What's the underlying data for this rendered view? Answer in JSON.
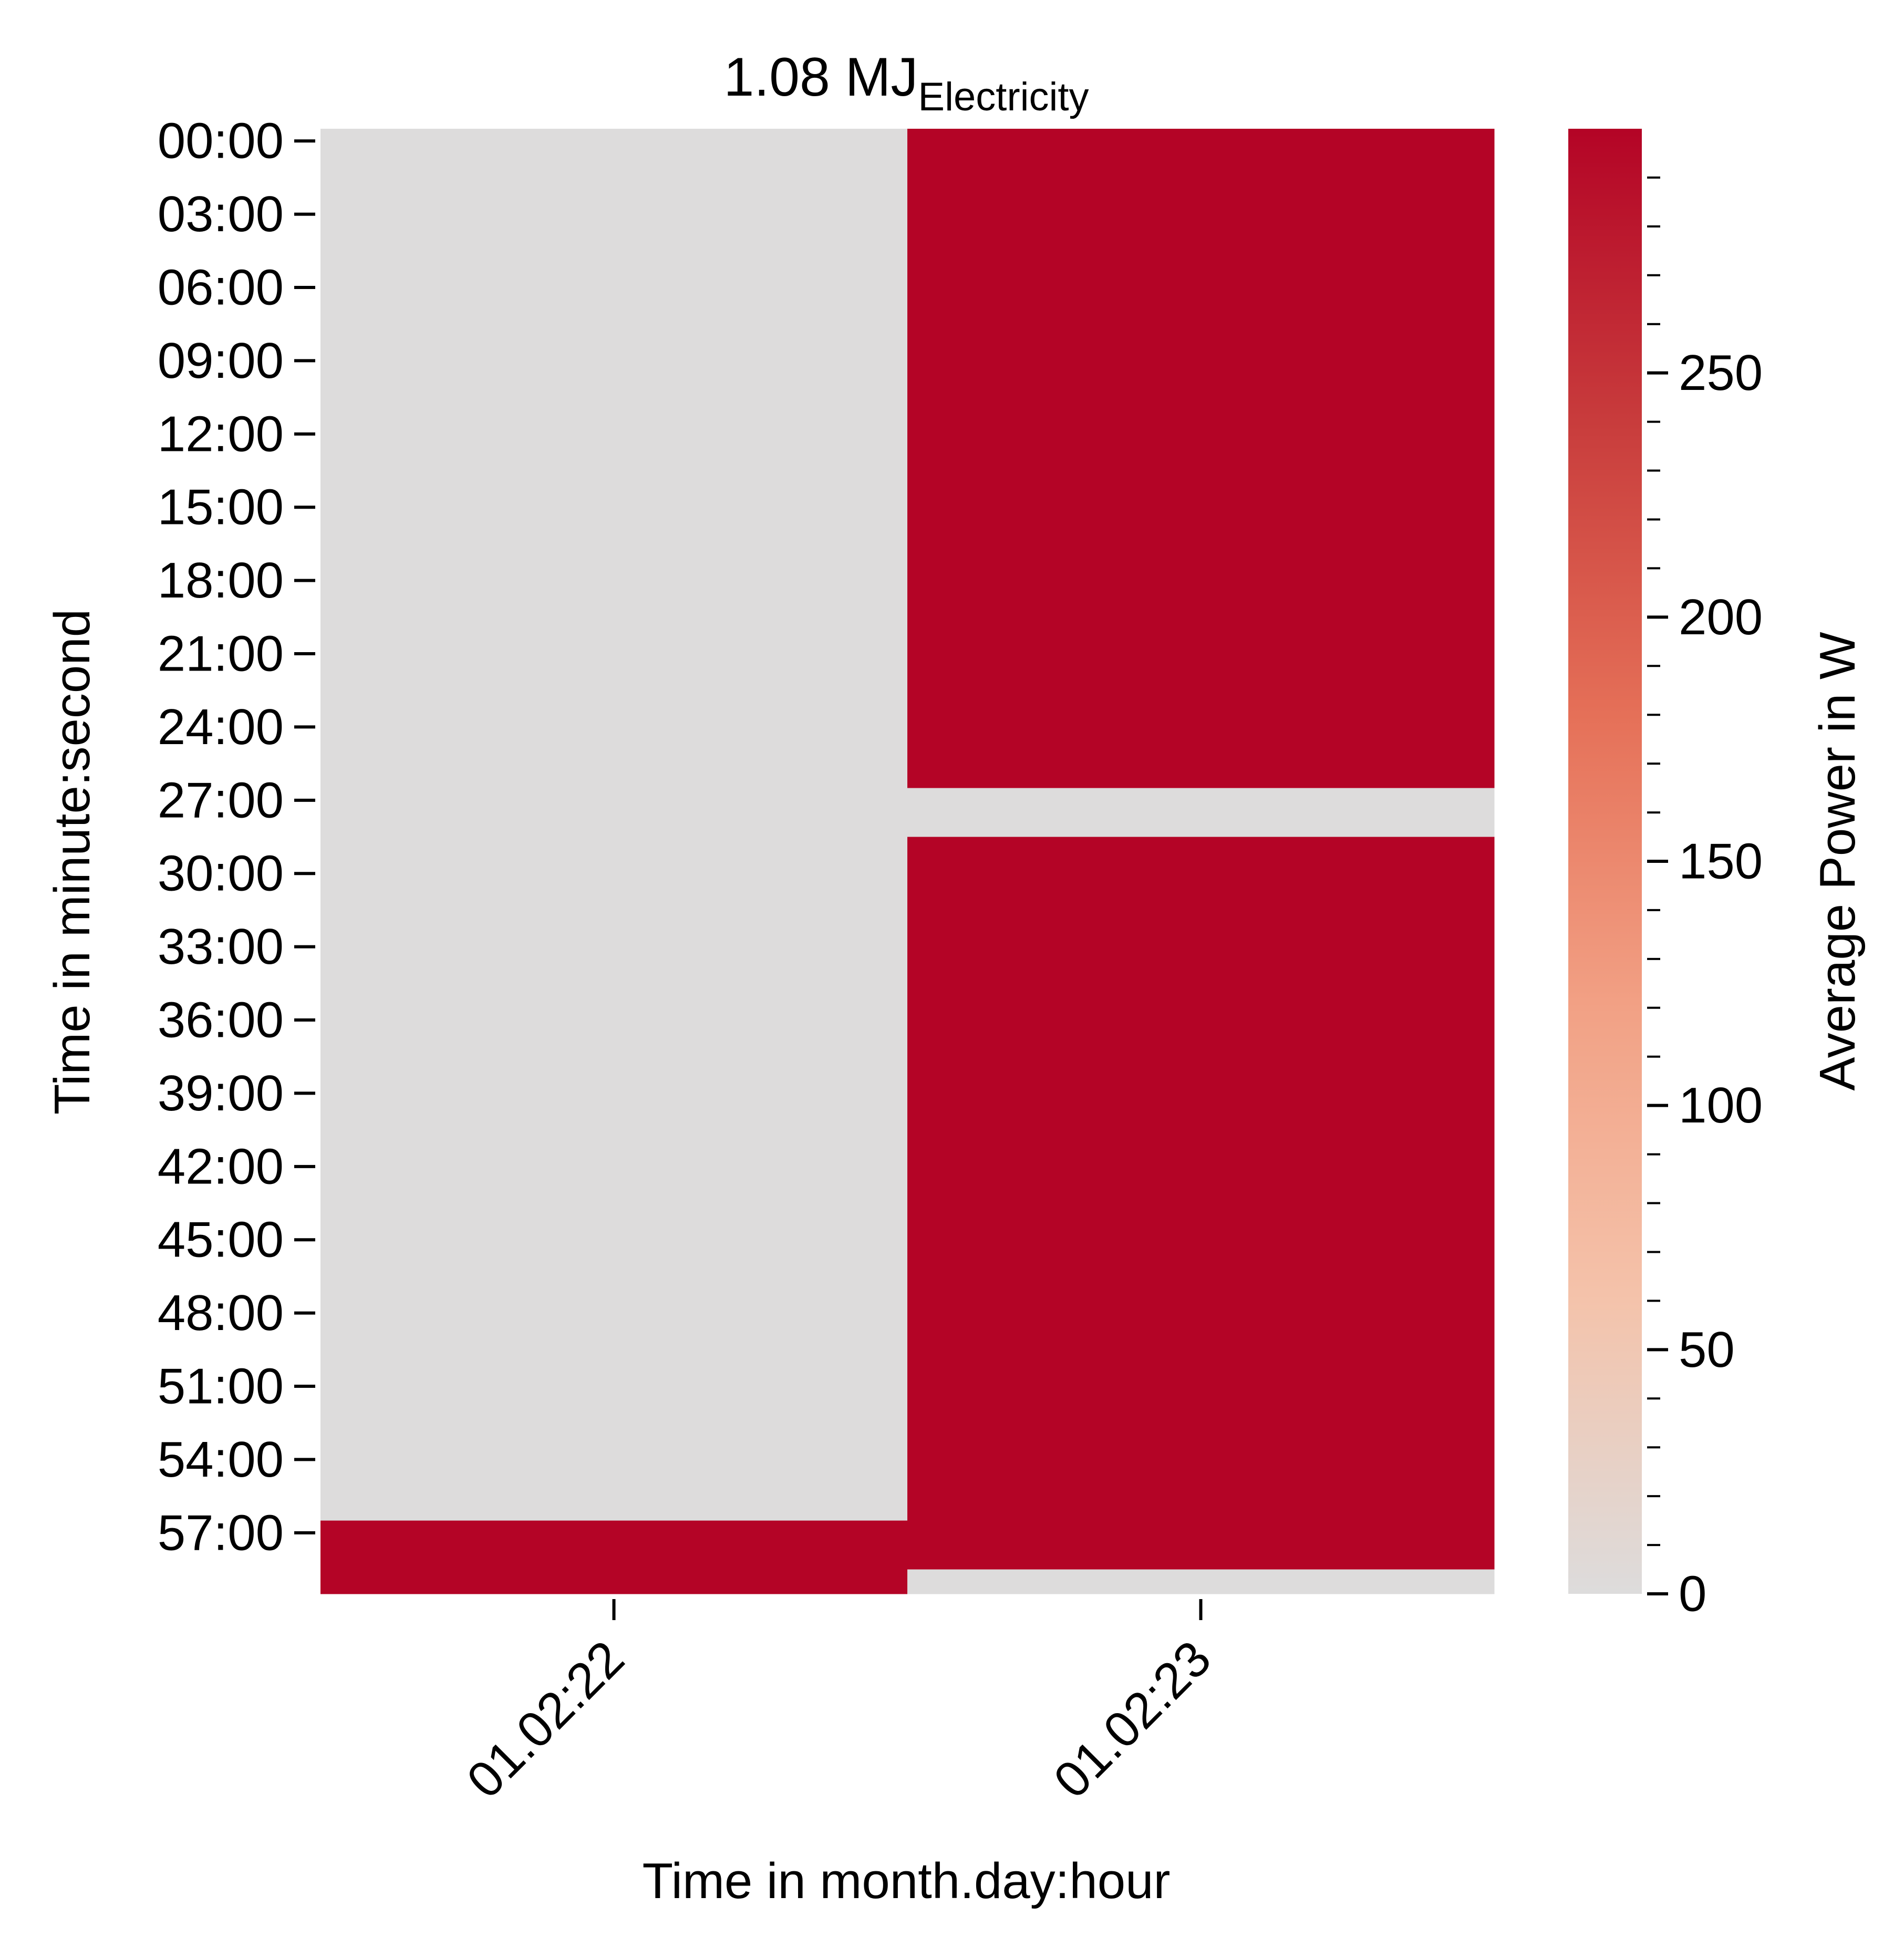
{
  "chart_data": {
    "type": "heatmap",
    "title": "1.08 MJ",
    "title_subscript": "Electricity",
    "xlabel": "Time in month.day:hour",
    "ylabel": "Time in minute:second",
    "colorbar_label": "Average Power in W",
    "x_categories": [
      "01.02:22",
      "01.02:23"
    ],
    "y_tick_labels": [
      "00:00",
      "03:00",
      "06:00",
      "09:00",
      "12:00",
      "15:00",
      "18:00",
      "21:00",
      "24:00",
      "27:00",
      "30:00",
      "33:00",
      "36:00",
      "39:00",
      "42:00",
      "45:00",
      "48:00",
      "51:00",
      "54:00",
      "57:00"
    ],
    "y_range_minutes": [
      0,
      60
    ],
    "cells": [
      {
        "x": "01.02:22",
        "start_min": 0,
        "end_min": 57,
        "value": 0
      },
      {
        "x": "01.02:22",
        "start_min": 57,
        "end_min": 60,
        "value": 300
      },
      {
        "x": "01.02:23",
        "start_min": 0,
        "end_min": 27,
        "value": 300
      },
      {
        "x": "01.02:23",
        "start_min": 27,
        "end_min": 29,
        "value": 0
      },
      {
        "x": "01.02:23",
        "start_min": 29,
        "end_min": 59,
        "value": 300
      },
      {
        "x": "01.02:23",
        "start_min": 59,
        "end_min": 60,
        "value": 0
      }
    ],
    "colorbar_ticks": [
      0,
      50,
      100,
      150,
      200,
      250
    ],
    "colorbar_range": [
      0,
      300
    ],
    "colormap": [
      "#dddcdc",
      "#f4c3ab",
      "#f2a185",
      "#e57058",
      "#c83c3c",
      "#b40426"
    ]
  }
}
